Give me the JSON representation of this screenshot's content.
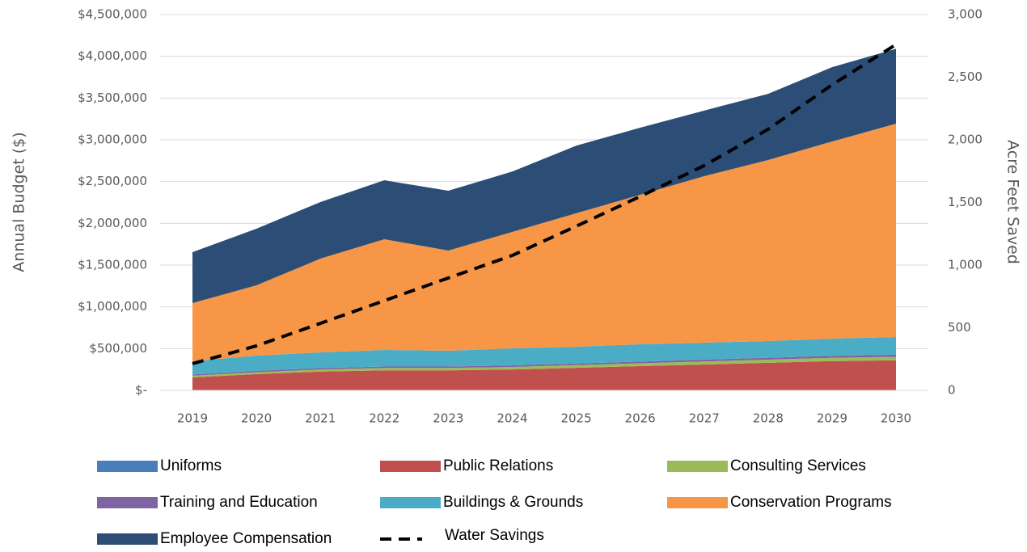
{
  "chart_data": {
    "type": "stacked_area_line",
    "categories": [
      "2019",
      "2020",
      "2021",
      "2022",
      "2023",
      "2024",
      "2025",
      "2026",
      "2027",
      "2028",
      "2029",
      "2030"
    ],
    "y_label": "Annual Budget ($)",
    "y2_label": "Acre Feet Saved",
    "series": [
      {
        "name": "Uniforms",
        "color": "#4a7ebb",
        "values": [
          5000,
          5000,
          5000,
          5000,
          5000,
          5000,
          5000,
          5000,
          5000,
          5000,
          5000,
          5000
        ]
      },
      {
        "name": "Public Relations",
        "color": "#c0504d",
        "values": [
          150000,
          190000,
          220000,
          235000,
          235000,
          245000,
          265000,
          285000,
          305000,
          325000,
          345000,
          355000
        ]
      },
      {
        "name": "Consulting Services",
        "color": "#9bbb59",
        "values": [
          20000,
          22000,
          25000,
          28000,
          28000,
          30000,
          32000,
          34000,
          36000,
          38000,
          40000,
          42000
        ]
      },
      {
        "name": "Training and Education",
        "color": "#8064a2",
        "values": [
          15000,
          16000,
          17000,
          18000,
          18000,
          19000,
          20000,
          21000,
          22000,
          23000,
          24000,
          25000
        ]
      },
      {
        "name": "Buildings & Grounds",
        "color": "#4bacc6",
        "values": [
          160000,
          183000,
          188000,
          198000,
          188000,
          204000,
          201000,
          207000,
          203000,
          199000,
          205000,
          212000
        ]
      },
      {
        "name": "Conservation Programs",
        "color": "#f79646",
        "values": [
          695000,
          842000,
          1122000,
          1326000,
          1200000,
          1394000,
          1597000,
          1790000,
          1994000,
          2168000,
          2361000,
          2555000
        ]
      },
      {
        "name": "Employee Compensation",
        "color": "#2c4d75",
        "values": [
          610000,
          677000,
          678000,
          706000,
          716000,
          723000,
          810000,
          803000,
          785000,
          792000,
          890000,
          896000
        ]
      },
      {
        "name": "Water Savings",
        "color": "#000000",
        "axis": "y2",
        "style": "dashed",
        "values": [
          213,
          355,
          535,
          716,
          897,
          1077,
          1310,
          1548,
          1794,
          2084,
          2439,
          2761
        ]
      }
    ],
    "ylim": [
      0,
      4500000
    ],
    "yticks": [
      {
        "value": 0,
        "label": "$-"
      },
      {
        "value": 500000,
        "label": "$500,000"
      },
      {
        "value": 1000000,
        "label": "$1,000,000"
      },
      {
        "value": 1500000,
        "label": "$1,500,000"
      },
      {
        "value": 2000000,
        "label": "$2,000,000"
      },
      {
        "value": 2500000,
        "label": "$2,500,000"
      },
      {
        "value": 3000000,
        "label": "$3,000,000"
      },
      {
        "value": 3500000,
        "label": "$3,500,000"
      },
      {
        "value": 4000000,
        "label": "$4,000,000"
      },
      {
        "value": 4500000,
        "label": "$4,500,000"
      }
    ],
    "y2lim": [
      0,
      3000
    ],
    "y2ticks": [
      0,
      500,
      {
        "value": 1000,
        "label": "1,000"
      },
      {
        "value": 1500,
        "label": "1,500"
      },
      {
        "value": 2000,
        "label": "2,000"
      },
      {
        "value": 2500,
        "label": "2,500"
      },
      {
        "value": 3000,
        "label": "3,000"
      }
    ],
    "grid": true,
    "legend": "bottom"
  }
}
